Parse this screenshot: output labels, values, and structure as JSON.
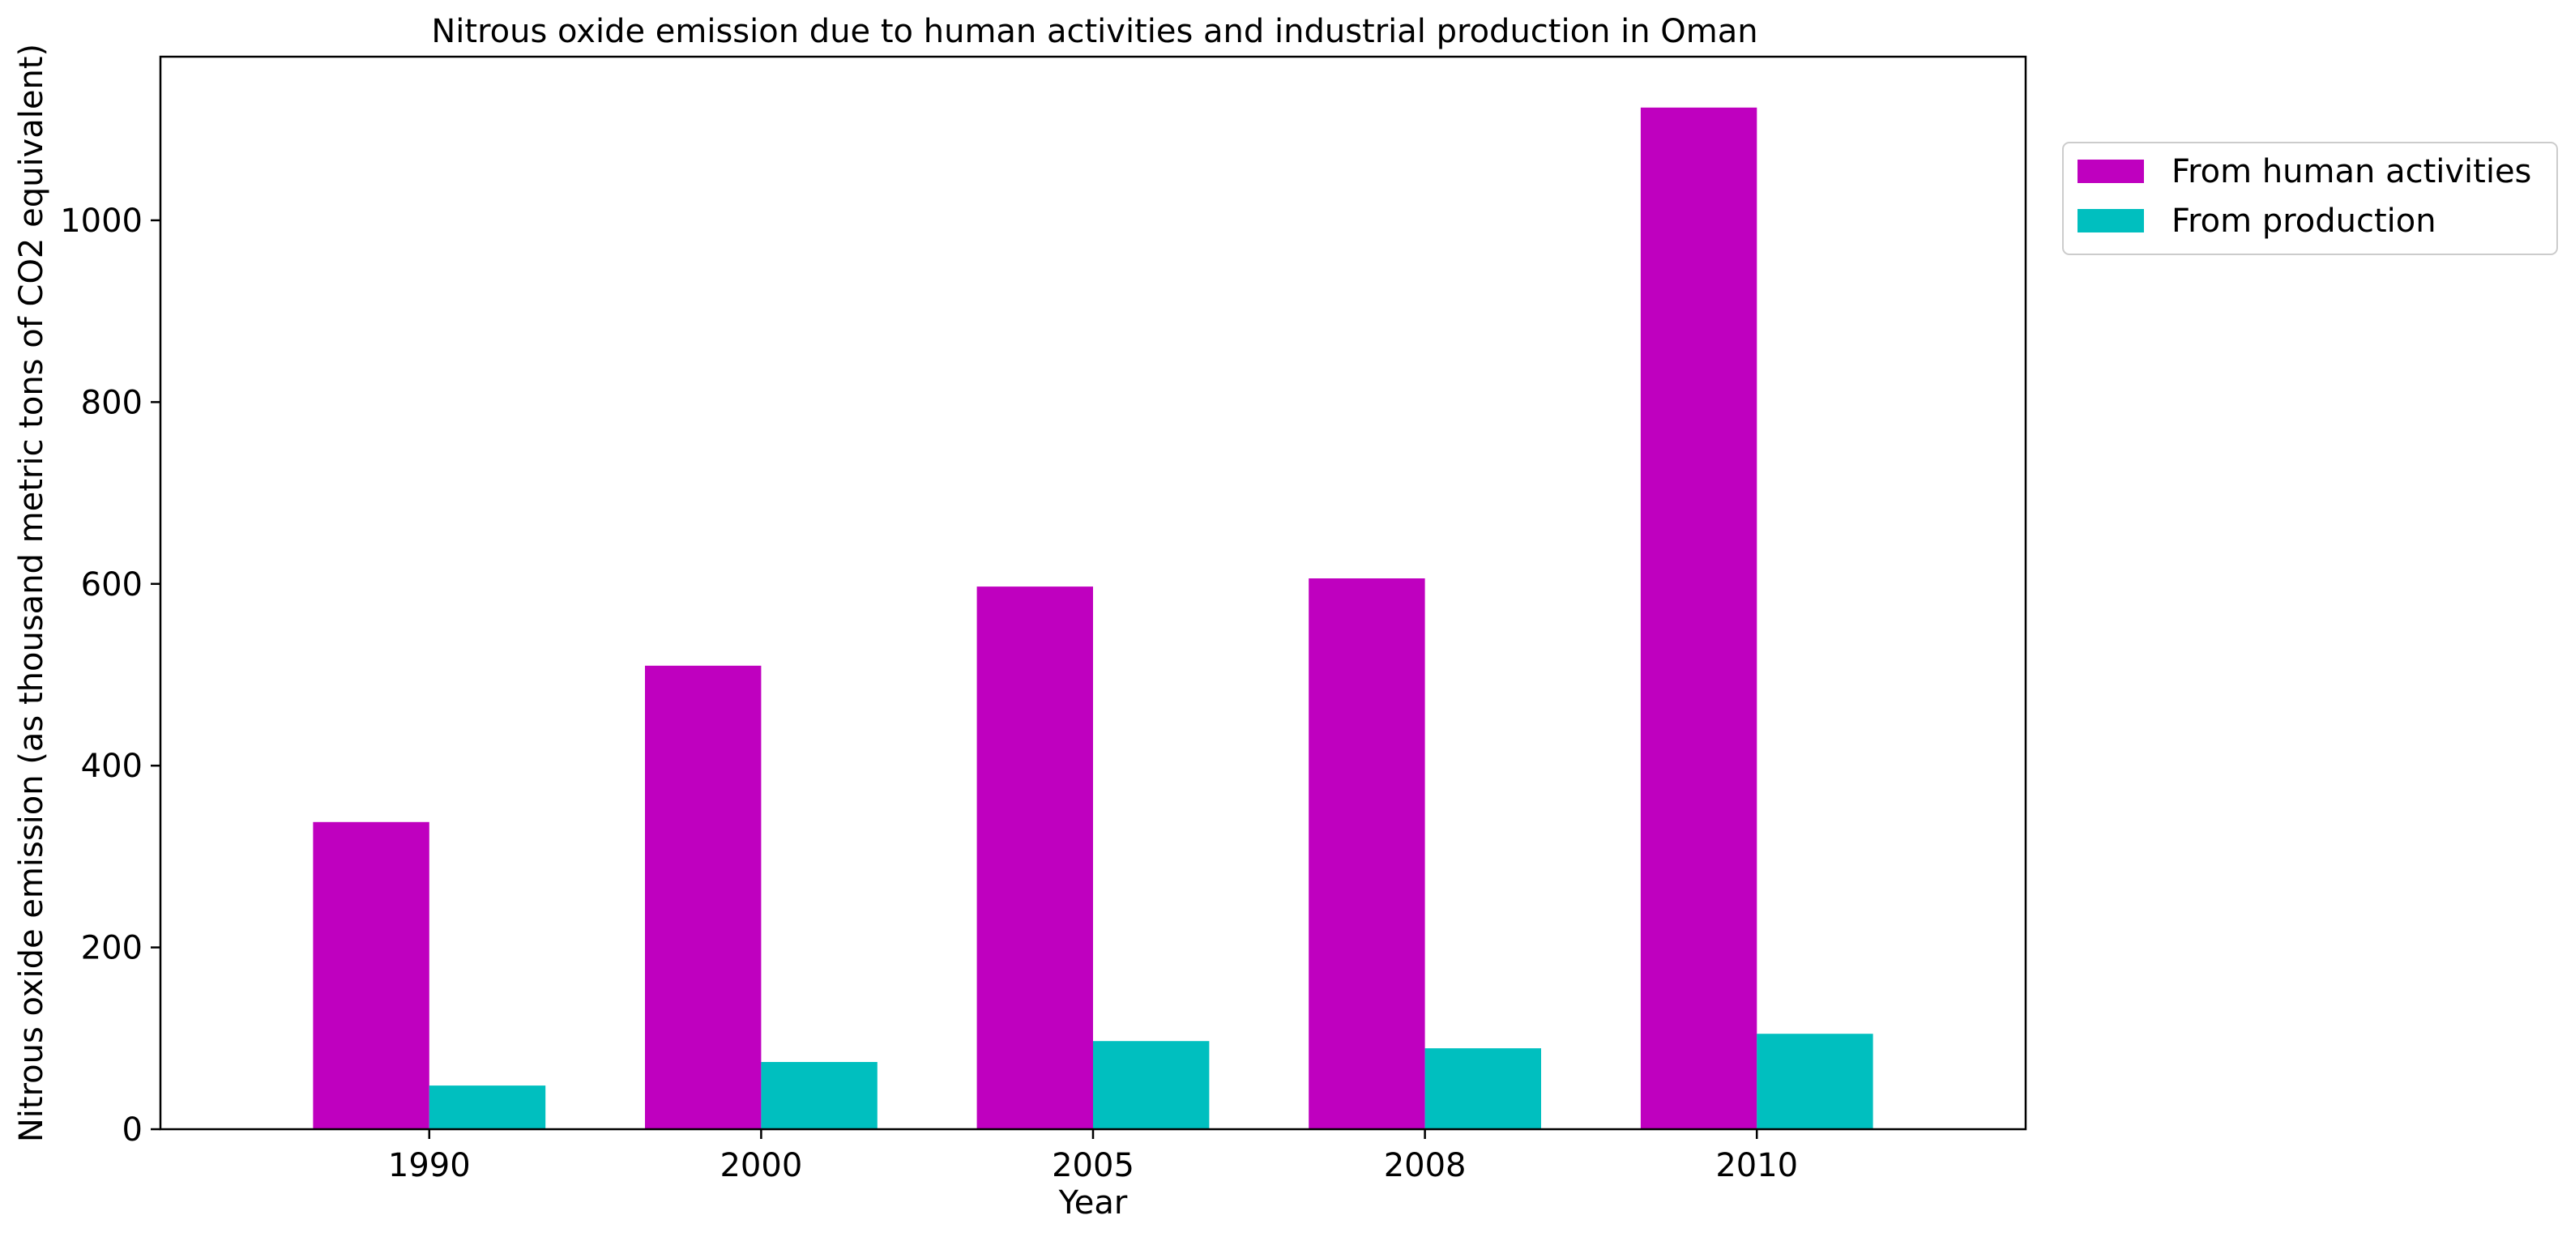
{
  "chart_data": {
    "type": "bar",
    "title": "Nitrous oxide emission due to human activities and industrial production in Oman",
    "xlabel": "Year",
    "ylabel": "Nitrous oxide emission (as thousand metric tons of CO2 equivalent)",
    "categories": [
      "1990",
      "2000",
      "2005",
      "2008",
      "2010"
    ],
    "series": [
      {
        "name": "From human activities",
        "color": "#bf00bf",
        "values": [
          338,
          510,
          597,
          606,
          1124
        ]
      },
      {
        "name": "From production",
        "color": "#00bfbf",
        "values": [
          48,
          74,
          97,
          89,
          105
        ]
      }
    ],
    "ylim": [
      0,
      1180
    ],
    "yticks": [
      0,
      200,
      400,
      600,
      800,
      1000
    ],
    "grid": false,
    "legend_position": "outside top-right"
  }
}
